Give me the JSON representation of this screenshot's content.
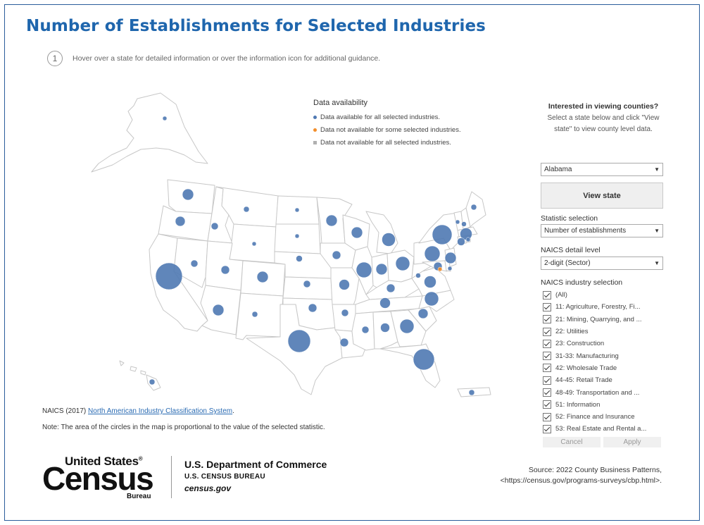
{
  "title": "Number of Establishments for Selected Industries",
  "hint": {
    "number": "1",
    "text": "Hover over a state for detailed information or over the information icon for additional guidance."
  },
  "legend": {
    "title": "Data availability",
    "items": [
      {
        "label": "Data available for all selected industries.",
        "color": "#4f79b3"
      },
      {
        "label": "Data not available for some selected industries.",
        "color": "#f28e2b"
      },
      {
        "label": "Data not available for all selected industries.",
        "color": "#b0b0b0"
      }
    ]
  },
  "map": {
    "bubble_color": "#4f79b3",
    "accent_color": "#f28e2b",
    "outline_color": "#c7c7c7"
  },
  "sidebar": {
    "counties_title": "Interested in viewing counties?",
    "counties_text": "Select a state below and click \"View state\" to view county level data.",
    "state_select": "Alabama",
    "view_state_button": "View state",
    "statistic_label": "Statistic selection",
    "statistic_select": "Number of establishments",
    "naics_level_label": "NAICS detail level",
    "naics_level_select": "2-digit (Sector)",
    "industry_label": "NAICS industry selection",
    "industries": [
      "(All)",
      "11: Agriculture, Forestry, Fi...",
      "21: Mining, Quarrying, and ...",
      "22: Utilities",
      "23: Construction",
      "31-33: Manufacturing",
      "42: Wholesale Trade",
      "44-45: Retail Trade",
      "48-49: Transportation and ...",
      "51: Information",
      "52: Finance and Insurance",
      "53: Real Estate and Rental a..."
    ],
    "cancel_button": "Cancel",
    "apply_button": "Apply"
  },
  "footer": {
    "naics_prefix": "NAICS (2017) ",
    "naics_link": "North American Industry Classification System",
    "naics_suffix": ".",
    "note": "Note: The area of the circles in the map is proportional to the value of the selected statistic.",
    "logo_top": "United States",
    "logo_reg": "®",
    "logo_main": "Census",
    "logo_bureau": "Bureau",
    "dept": "U.S. Department of Commerce",
    "bureau": "U.S. CENSUS BUREAU",
    "site": "census.gov",
    "source_line1": "Source: 2022 County Business Patterns,",
    "source_line2": "<https://census.gov/programs-surveys/cbp.html>."
  }
}
